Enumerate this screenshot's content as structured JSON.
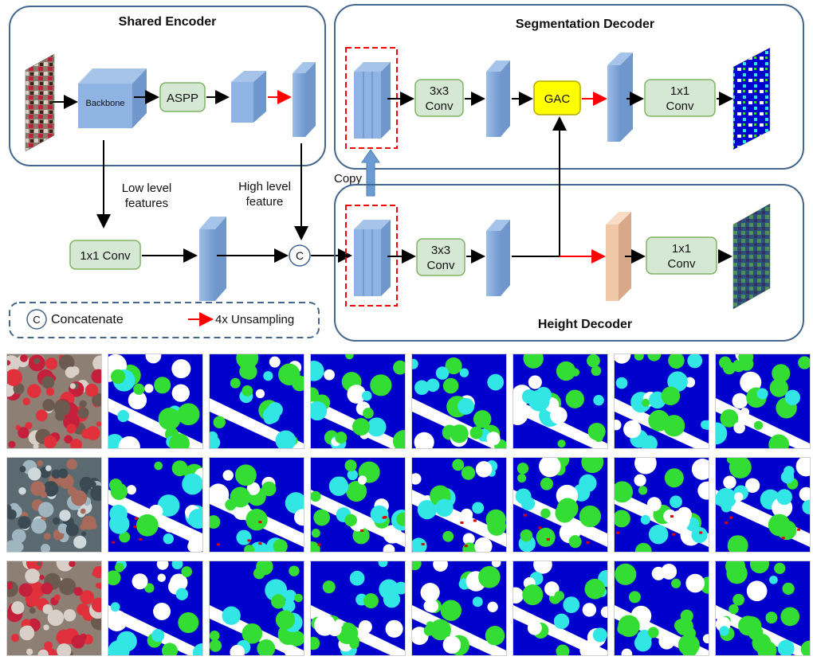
{
  "diagram": {
    "encoder": {
      "title": "Shared Encoder",
      "backbone": "Backbone",
      "aspp": "ASPP"
    },
    "seg_decoder": {
      "title": "Segmentation Decoder",
      "conv3": [
        "3x3",
        "Conv"
      ],
      "gac": "GAC",
      "conv1": [
        "1x1",
        "Conv"
      ]
    },
    "height_decoder": {
      "title": "Height Decoder",
      "conv3": [
        "3x3",
        "Conv"
      ],
      "conv1": [
        "1x1",
        "Conv"
      ]
    },
    "low_level_label": [
      "Low level",
      "features"
    ],
    "high_level_label": [
      "High level",
      "feature"
    ],
    "conv1x1_low": "1x1 Conv",
    "concat_symbol": "C",
    "copy_label": "Copy",
    "legend": {
      "concat_symbol": "C",
      "concat_label": "Concatenate",
      "upsample_label": "4x Unsampling"
    },
    "colors": {
      "box_green": "#d5e8d4",
      "gac_yellow": "#ffff00",
      "feature_blue": "#7fa6d8",
      "upsample_red": "#ff0000",
      "copy_blue": "#6b9bd1",
      "height_feature": "#f0c8a8",
      "frame": "#44678f"
    }
  },
  "result_grid": {
    "rows": 3,
    "columns": 8,
    "column_kinds": [
      "input",
      "map",
      "map",
      "map",
      "map",
      "map",
      "map",
      "map"
    ],
    "segmentation_colors": {
      "building": "#0000cc",
      "tree": "#33dd33",
      "low_vegetation": "#33e6e6",
      "impervious": "#ffffff",
      "car": "#ffff00",
      "clutter": "#dd0000"
    }
  }
}
